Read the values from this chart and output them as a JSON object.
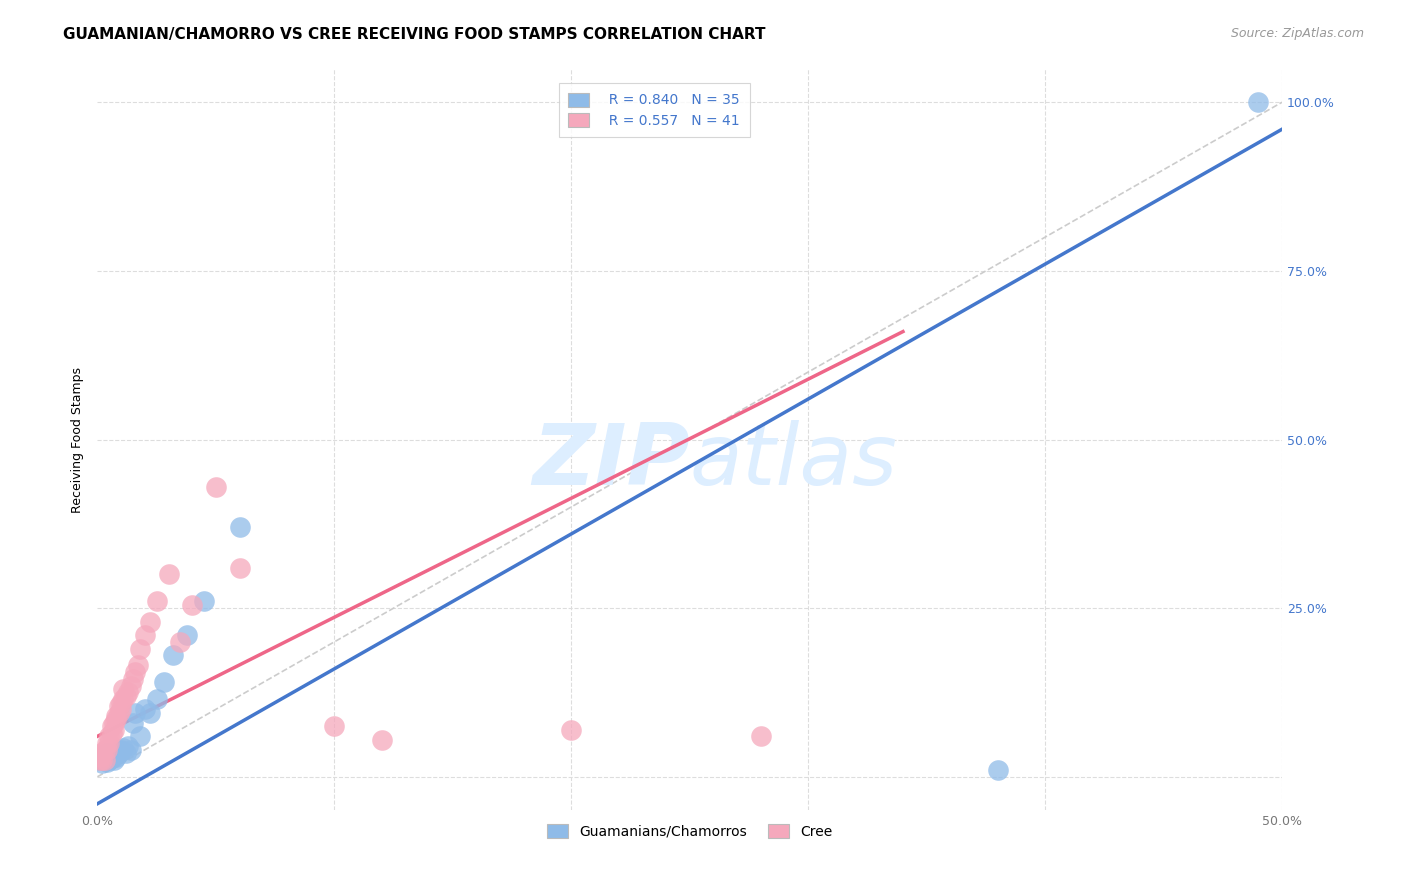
{
  "title": "GUAMANIAN/CHAMORRO VS CREE RECEIVING FOOD STAMPS CORRELATION CHART",
  "source": "Source: ZipAtlas.com",
  "ylabel": "Receiving Food Stamps",
  "xlim": [
    0.0,
    0.5
  ],
  "ylim": [
    -0.05,
    1.05
  ],
  "xticks": [
    0.0,
    0.1,
    0.2,
    0.3,
    0.4,
    0.5
  ],
  "xticklabels": [
    "0.0%",
    "",
    "",
    "",
    "",
    "50.0%"
  ],
  "right_ytick_vals": [
    0.0,
    0.25,
    0.5,
    0.75,
    1.0
  ],
  "right_yticklabels": [
    "",
    "25.0%",
    "50.0%",
    "75.0%",
    "100.0%"
  ],
  "grid_yticks": [
    0.0,
    0.25,
    0.5,
    0.75,
    1.0
  ],
  "grid_xticks": [
    0.1,
    0.2,
    0.3,
    0.4,
    0.5
  ],
  "blue_color": "#8FBBE8",
  "pink_color": "#F5A8BC",
  "blue_line_color": "#4477CC",
  "pink_line_color": "#EE6688",
  "dashed_line_color": "#CCCCCC",
  "right_tick_color": "#4477CC",
  "legend_R_blue": "R = 0.840",
  "legend_N_blue": "N = 35",
  "legend_R_pink": "R = 0.557",
  "legend_N_pink": "N = 41",
  "watermark_zip": "ZIP",
  "watermark_atlas": "atlas",
  "watermark_color": "#DDEEFF",
  "grid_color": "#DDDDDD",
  "blue_scatter_x": [
    0.001,
    0.002,
    0.002,
    0.003,
    0.003,
    0.004,
    0.004,
    0.005,
    0.005,
    0.006,
    0.006,
    0.007,
    0.007,
    0.008,
    0.008,
    0.009,
    0.01,
    0.01,
    0.011,
    0.012,
    0.013,
    0.014,
    0.015,
    0.016,
    0.018,
    0.02,
    0.022,
    0.025,
    0.028,
    0.032,
    0.038,
    0.045,
    0.06,
    0.38,
    0.49
  ],
  "blue_scatter_y": [
    0.025,
    0.02,
    0.03,
    0.028,
    0.032,
    0.022,
    0.035,
    0.025,
    0.03,
    0.028,
    0.03,
    0.025,
    0.032,
    0.03,
    0.035,
    0.035,
    0.04,
    0.038,
    0.042,
    0.035,
    0.045,
    0.04,
    0.08,
    0.095,
    0.06,
    0.1,
    0.095,
    0.115,
    0.14,
    0.18,
    0.21,
    0.26,
    0.37,
    0.01,
    1.0
  ],
  "pink_scatter_x": [
    0.001,
    0.001,
    0.002,
    0.002,
    0.003,
    0.003,
    0.004,
    0.004,
    0.005,
    0.005,
    0.006,
    0.006,
    0.007,
    0.007,
    0.008,
    0.008,
    0.009,
    0.009,
    0.01,
    0.01,
    0.011,
    0.011,
    0.012,
    0.013,
    0.014,
    0.015,
    0.016,
    0.017,
    0.018,
    0.02,
    0.022,
    0.025,
    0.03,
    0.035,
    0.04,
    0.05,
    0.06,
    0.1,
    0.12,
    0.2,
    0.28
  ],
  "pink_scatter_y": [
    0.025,
    0.03,
    0.025,
    0.035,
    0.025,
    0.04,
    0.04,
    0.05,
    0.05,
    0.06,
    0.065,
    0.075,
    0.07,
    0.08,
    0.085,
    0.09,
    0.095,
    0.105,
    0.1,
    0.11,
    0.115,
    0.13,
    0.12,
    0.125,
    0.135,
    0.145,
    0.155,
    0.165,
    0.19,
    0.21,
    0.23,
    0.26,
    0.3,
    0.2,
    0.255,
    0.43,
    0.31,
    0.075,
    0.055,
    0.07,
    0.06
  ],
  "blue_line_x": [
    0.0,
    0.5
  ],
  "blue_line_y": [
    -0.04,
    0.96
  ],
  "pink_line_x": [
    0.0,
    0.34
  ],
  "pink_line_y": [
    0.06,
    0.66
  ],
  "dashed_line_x": [
    0.0,
    0.5
  ],
  "dashed_line_y": [
    0.0,
    1.0
  ],
  "legend_blue_label": "Guamanians/Chamorros",
  "legend_pink_label": "Cree",
  "title_fontsize": 11,
  "axis_label_fontsize": 9,
  "tick_fontsize": 9,
  "legend_fontsize": 10,
  "source_fontsize": 9
}
